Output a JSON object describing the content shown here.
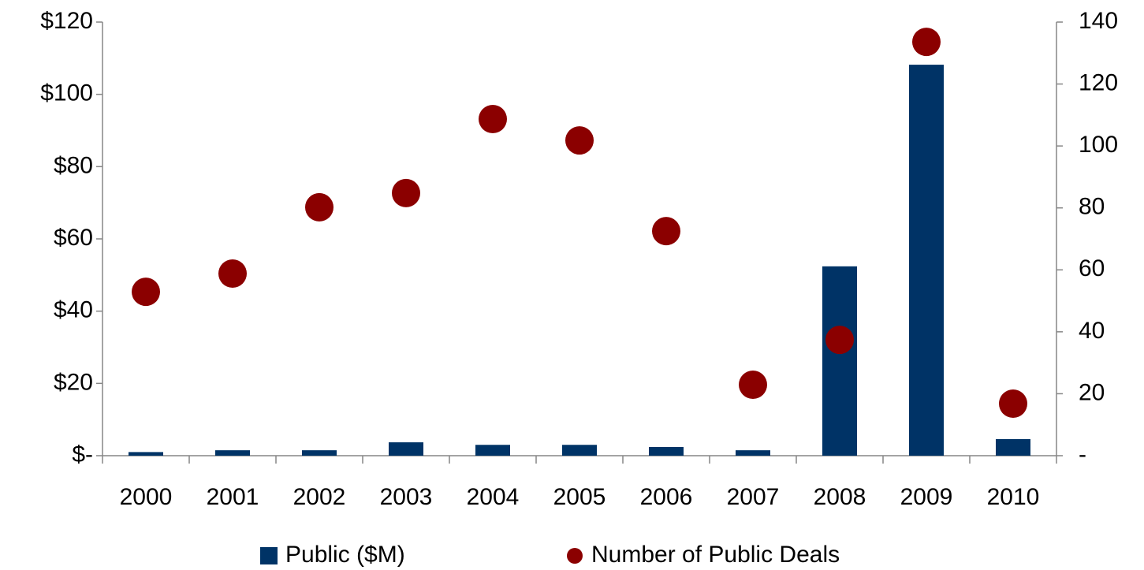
{
  "chart_data": {
    "type": "bar",
    "categories": [
      "2000",
      "2001",
      "2002",
      "2003",
      "2004",
      "2005",
      "2006",
      "2007",
      "2008",
      "2009",
      "2010"
    ],
    "series": [
      {
        "name": "Public ($M)",
        "color": "#003366",
        "type": "bar",
        "axis": "y",
        "values": [
          1,
          1.5,
          1.5,
          3.7,
          3,
          3,
          2.4,
          1.5,
          52.4,
          108.2,
          4.6
        ]
      },
      {
        "name": "Number of Public Deals",
        "color": "#8b0000",
        "type": "scatter",
        "axis": "y2",
        "values": [
          52.9,
          58.8,
          80.2,
          84.8,
          108.7,
          101.8,
          72.5,
          22.9,
          37.4,
          133.6,
          16.8
        ]
      }
    ],
    "ylim": [
      0,
      120
    ],
    "yticks": [
      {
        "value": 0,
        "label": "$-"
      },
      {
        "value": 20,
        "label": "$20"
      },
      {
        "value": 40,
        "label": "$40"
      },
      {
        "value": 60,
        "label": "$60"
      },
      {
        "value": 80,
        "label": "$80"
      },
      {
        "value": 100,
        "label": "$100"
      },
      {
        "value": 120,
        "label": "$120"
      }
    ],
    "y2lim": [
      0,
      140
    ],
    "y2ticks": [
      {
        "value": 0,
        "label": "-"
      },
      20,
      40,
      60,
      80,
      100,
      120,
      140
    ],
    "grid": false,
    "legend": "bottom"
  }
}
